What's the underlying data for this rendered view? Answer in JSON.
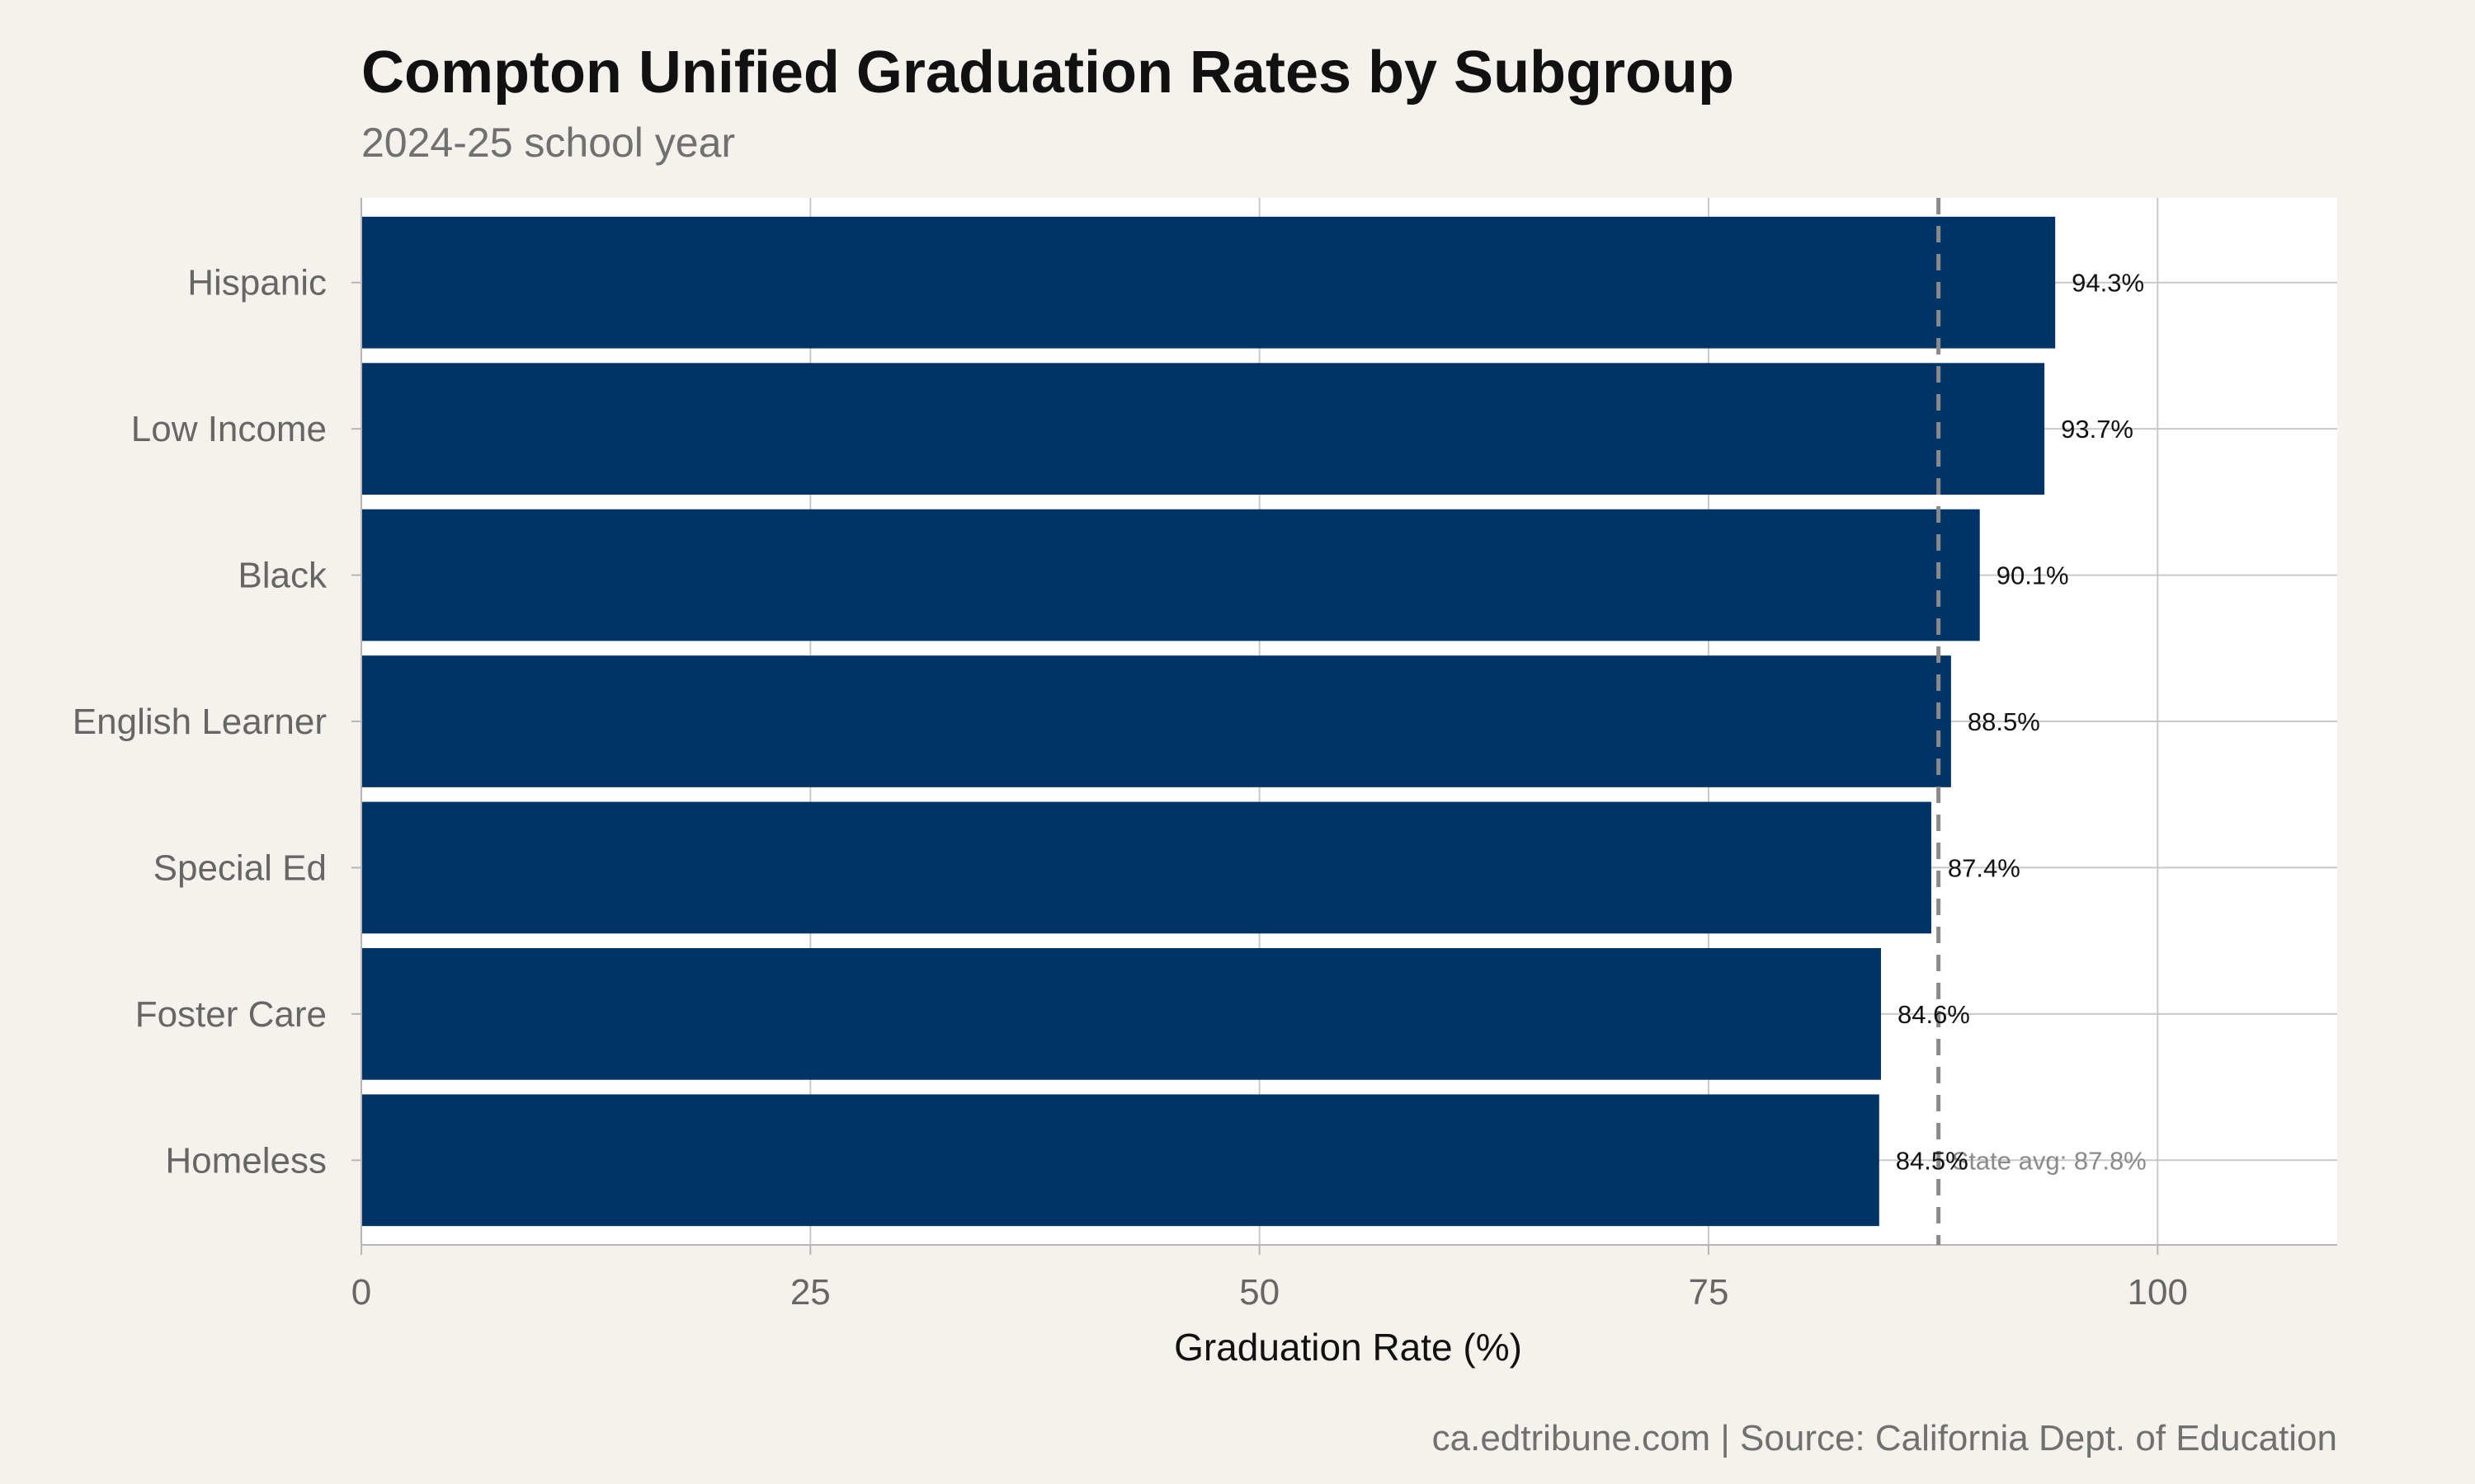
{
  "chart_data": {
    "type": "bar",
    "orientation": "horizontal",
    "title": "Compton Unified Graduation Rates by Subgroup",
    "subtitle": "2024-25 school year",
    "xlabel": "Graduation Rate (%)",
    "ylabel": "",
    "xlim": [
      0,
      110
    ],
    "x_ticks": [
      0,
      25,
      50,
      75,
      100
    ],
    "categories": [
      "Hispanic",
      "Low Income",
      "Black",
      "English Learner",
      "Special Ed",
      "Foster Care",
      "Homeless"
    ],
    "values": [
      94.3,
      93.7,
      90.1,
      88.5,
      87.4,
      84.6,
      84.5
    ],
    "value_labels": [
      "94.3%",
      "93.7%",
      "90.1%",
      "88.5%",
      "87.4%",
      "84.6%",
      "84.5%"
    ],
    "reference_line": {
      "value": 87.8,
      "label": "State avg: 87.8%",
      "style": "dashed"
    },
    "grid": true,
    "caption": "ca.edtribune.com | Source: California Dept. of Education"
  },
  "colors": {
    "bar": "#003366",
    "background": "#f5f2ed",
    "panel": "#ffffff",
    "grid": "#c8c8c8",
    "reference_line": "#8a8a8a"
  }
}
